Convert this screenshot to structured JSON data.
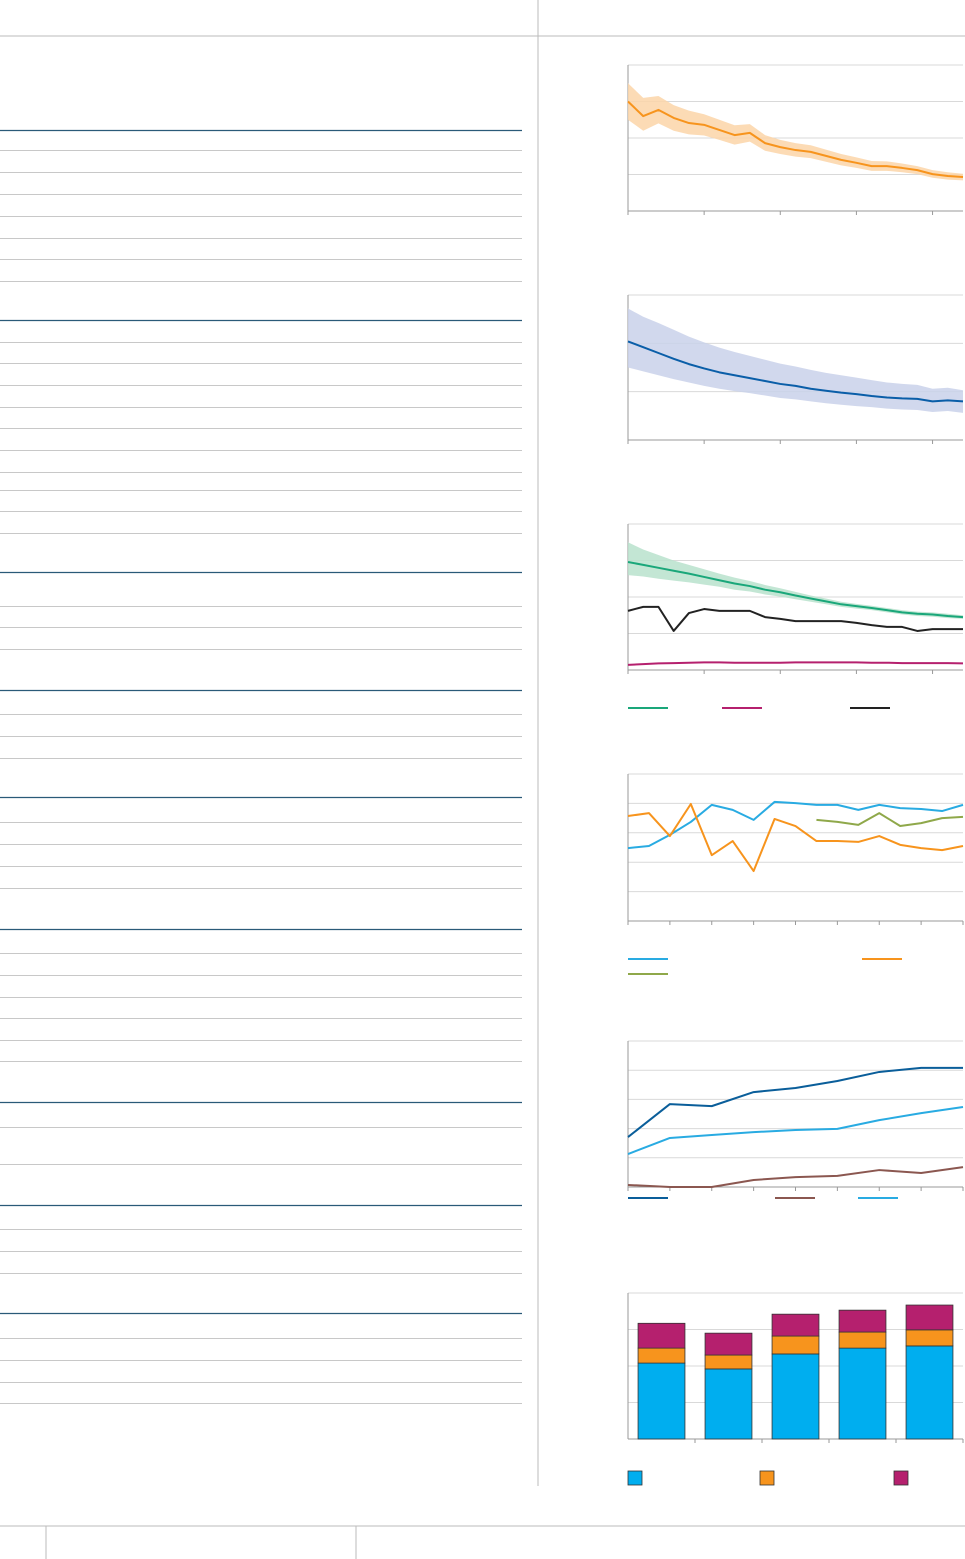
{
  "chart_data": [
    {
      "type": "line",
      "x": [
        0,
        1,
        2,
        3,
        4,
        5,
        6,
        7,
        8,
        9,
        10,
        11,
        12,
        13,
        14,
        15,
        16,
        17,
        18,
        19,
        20,
        21,
        22
      ],
      "xlim": [
        0,
        22
      ],
      "xticks": [
        0,
        5,
        10,
        15,
        20
      ],
      "ylim": [
        0,
        4
      ],
      "yticks": [
        0,
        1,
        2,
        3,
        4
      ],
      "grid": true,
      "band": {
        "color": "#fcd5a8",
        "upper": [
          3.5,
          3.1,
          3.15,
          2.9,
          2.75,
          2.65,
          2.5,
          2.35,
          2.38,
          2.08,
          1.95,
          1.86,
          1.8,
          1.68,
          1.56,
          1.47,
          1.37,
          1.36,
          1.3,
          1.23,
          1.12,
          1.06,
          1.02
        ],
        "lower": [
          2.5,
          2.2,
          2.4,
          2.2,
          2.1,
          2.07,
          1.95,
          1.82,
          1.9,
          1.65,
          1.56,
          1.49,
          1.45,
          1.35,
          1.25,
          1.18,
          1.1,
          1.1,
          1.06,
          1.01,
          0.91,
          0.86,
          0.84
        ]
      },
      "series": [
        {
          "color": "#f7941d",
          "values": [
            3.0,
            2.6,
            2.77,
            2.55,
            2.41,
            2.36,
            2.22,
            2.08,
            2.14,
            1.86,
            1.75,
            1.67,
            1.62,
            1.51,
            1.4,
            1.32,
            1.23,
            1.23,
            1.18,
            1.12,
            1.01,
            0.96,
            0.93
          ]
        }
      ]
    },
    {
      "type": "line",
      "x": [
        0,
        1,
        2,
        3,
        4,
        5,
        6,
        7,
        8,
        9,
        10,
        11,
        12,
        13,
        14,
        15,
        16,
        17,
        18,
        19,
        20,
        21,
        22
      ],
      "xlim": [
        0,
        22
      ],
      "xticks": [
        0,
        5,
        10,
        15,
        20
      ],
      "ylim": [
        0,
        3
      ],
      "yticks": [
        0,
        1,
        2,
        3
      ],
      "grid": true,
      "band": {
        "color": "#c9d1ea",
        "upper": [
          2.72,
          2.55,
          2.42,
          2.28,
          2.14,
          2.02,
          1.91,
          1.82,
          1.74,
          1.66,
          1.58,
          1.52,
          1.45,
          1.39,
          1.34,
          1.29,
          1.24,
          1.19,
          1.16,
          1.14,
          1.06,
          1.08,
          1.03
        ],
        "lower": [
          1.5,
          1.42,
          1.34,
          1.26,
          1.19,
          1.12,
          1.06,
          1.01,
          0.97,
          0.92,
          0.87,
          0.84,
          0.8,
          0.76,
          0.73,
          0.7,
          0.68,
          0.65,
          0.63,
          0.62,
          0.58,
          0.6,
          0.56
        ]
      },
      "series": [
        {
          "color": "#0a5ea8",
          "values": [
            2.04,
            1.92,
            1.8,
            1.68,
            1.57,
            1.48,
            1.4,
            1.34,
            1.28,
            1.22,
            1.16,
            1.12,
            1.06,
            1.02,
            0.98,
            0.95,
            0.91,
            0.88,
            0.86,
            0.85,
            0.8,
            0.82,
            0.8
          ]
        }
      ]
    },
    {
      "type": "line",
      "x": [
        0,
        1,
        2,
        3,
        4,
        5,
        6,
        7,
        8,
        9,
        10,
        11,
        12,
        13,
        14,
        15,
        16,
        17,
        18,
        19,
        20,
        21,
        22
      ],
      "xlim": [
        0,
        22
      ],
      "xticks": [
        0,
        5,
        10,
        15,
        20
      ],
      "ylim": [
        0,
        4
      ],
      "yticks": [
        0,
        1,
        2,
        3,
        4
      ],
      "grid": true,
      "band": {
        "color": "#b8e2cc",
        "upper": [
          3.5,
          3.3,
          3.15,
          3.0,
          2.88,
          2.76,
          2.64,
          2.53,
          2.44,
          2.33,
          2.24,
          2.14,
          2.04,
          1.96,
          1.87,
          1.81,
          1.76,
          1.7,
          1.64,
          1.6,
          1.58,
          1.54,
          1.5
        ],
        "lower": [
          2.6,
          2.56,
          2.5,
          2.45,
          2.4,
          2.34,
          2.28,
          2.2,
          2.15,
          2.07,
          2.01,
          1.94,
          1.87,
          1.8,
          1.73,
          1.68,
          1.64,
          1.58,
          1.52,
          1.48,
          1.46,
          1.42,
          1.4
        ]
      },
      "series": [
        {
          "color": "#1aa77a",
          "values": [
            2.96,
            2.88,
            2.8,
            2.72,
            2.64,
            2.55,
            2.46,
            2.37,
            2.3,
            2.2,
            2.13,
            2.04,
            1.96,
            1.88,
            1.8,
            1.75,
            1.7,
            1.64,
            1.58,
            1.54,
            1.52,
            1.48,
            1.45
          ]
        },
        {
          "color": "#b5206e",
          "values": [
            0.14,
            0.16,
            0.18,
            0.19,
            0.2,
            0.21,
            0.21,
            0.2,
            0.2,
            0.2,
            0.2,
            0.21,
            0.21,
            0.21,
            0.21,
            0.21,
            0.2,
            0.2,
            0.19,
            0.19,
            0.19,
            0.19,
            0.18
          ]
        },
        {
          "color": "#222222",
          "values": [
            1.62,
            1.73,
            1.73,
            1.07,
            1.56,
            1.67,
            1.62,
            1.62,
            1.62,
            1.45,
            1.4,
            1.34,
            1.34,
            1.34,
            1.34,
            1.29,
            1.23,
            1.18,
            1.18,
            1.07,
            1.12,
            1.12,
            1.12
          ]
        }
      ]
    },
    {
      "type": "line",
      "x": [
        0,
        1,
        2,
        3,
        4,
        5,
        6,
        7,
        8,
        9,
        10,
        11,
        12,
        13,
        14,
        15,
        16
      ],
      "xlim": [
        0,
        16
      ],
      "xticks": [
        0,
        2,
        4,
        6,
        8,
        10,
        12,
        14,
        16
      ],
      "ylim": [
        0,
        5
      ],
      "yticks": [
        0,
        1,
        2,
        3,
        4,
        5
      ],
      "grid": true,
      "series": [
        {
          "color": "#29abe2",
          "values": [
            2.48,
            2.55,
            2.93,
            3.37,
            3.95,
            3.78,
            3.44,
            4.05,
            4.01,
            3.95,
            3.95,
            3.78,
            3.95,
            3.84,
            3.81,
            3.74,
            3.95
          ]
        },
        {
          "color": "#f7941d",
          "values": [
            3.57,
            3.67,
            2.89,
            3.98,
            2.24,
            2.72,
            1.7,
            3.47,
            3.23,
            2.72,
            2.72,
            2.69,
            2.89,
            2.59,
            2.48,
            2.41,
            2.55
          ]
        },
        {
          "color": "#8fa84a",
          "values": [
            null,
            null,
            null,
            null,
            null,
            null,
            null,
            null,
            null,
            3.44,
            3.37,
            3.27,
            3.67,
            3.23,
            3.33,
            3.5,
            3.54
          ]
        }
      ]
    },
    {
      "type": "line",
      "x": [
        0,
        1,
        2,
        3,
        4,
        5,
        6,
        7,
        8
      ],
      "xlim": [
        0,
        8
      ],
      "xticks": [
        0,
        1,
        2,
        3,
        4,
        5,
        6,
        7,
        8
      ],
      "ylim": [
        0,
        5
      ],
      "yticks": [
        0,
        1,
        2,
        3,
        4,
        5
      ],
      "grid": true,
      "series": [
        {
          "color": "#0a5e9a",
          "values": [
            1.71,
            2.84,
            2.77,
            3.25,
            3.39,
            3.63,
            3.94,
            4.08,
            4.08
          ]
        },
        {
          "color": "#8b5750",
          "values": [
            0.07,
            0,
            0,
            0.24,
            0.34,
            0.38,
            0.58,
            0.48,
            0.68
          ]
        },
        {
          "color": "#29abe2",
          "values": [
            1.13,
            1.68,
            1.78,
            1.88,
            1.95,
            1.99,
            2.29,
            2.53,
            2.74
          ]
        }
      ]
    },
    {
      "type": "stacked_bar",
      "categories": [
        null,
        null,
        null,
        null,
        null
      ],
      "ylim": [
        0,
        4
      ],
      "yticks": [
        0,
        1,
        2,
        3,
        4
      ],
      "grid": true,
      "series": [
        {
          "color": "#00aeef",
          "values": [
            2.08,
            1.92,
            2.33,
            2.49,
            2.55
          ]
        },
        {
          "color": "#f7941d",
          "values": [
            0.41,
            0.38,
            0.49,
            0.44,
            0.44
          ]
        },
        {
          "color": "#b5206e",
          "values": [
            0.68,
            0.6,
            0.6,
            0.6,
            0.68
          ]
        }
      ]
    }
  ]
}
